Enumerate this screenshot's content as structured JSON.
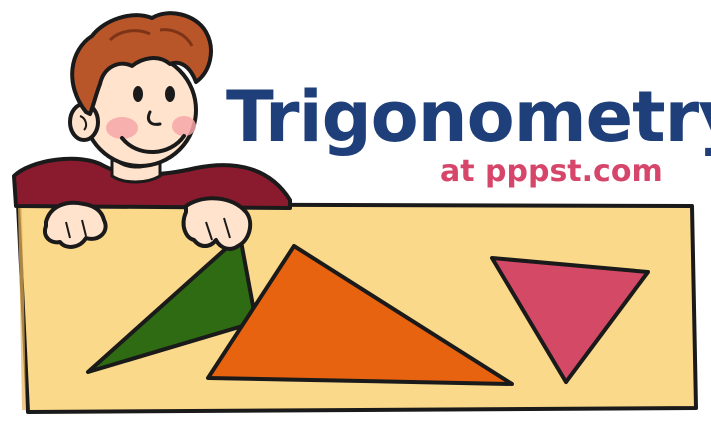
{
  "title": "Trigonometry",
  "subtitle": "at pppst.com",
  "colors": {
    "title": "#1f3f7a",
    "subtitle": "#d6456a",
    "board_fill": "#fbd98a",
    "board_outline": "#1a1a1a",
    "triangle_green": "#2f6b12",
    "triangle_orange": "#e8630f",
    "triangle_pink": "#d44a66",
    "hair": "#b8562a",
    "sweater": "#8a1b2e",
    "skin": "#ffe3cc",
    "cheek": "#f6a7a7"
  },
  "illustration": {
    "figure": "cartoon-boy-leaning-on-board",
    "shapes": [
      "green-triangle",
      "orange-triangle",
      "pink-triangle"
    ]
  }
}
